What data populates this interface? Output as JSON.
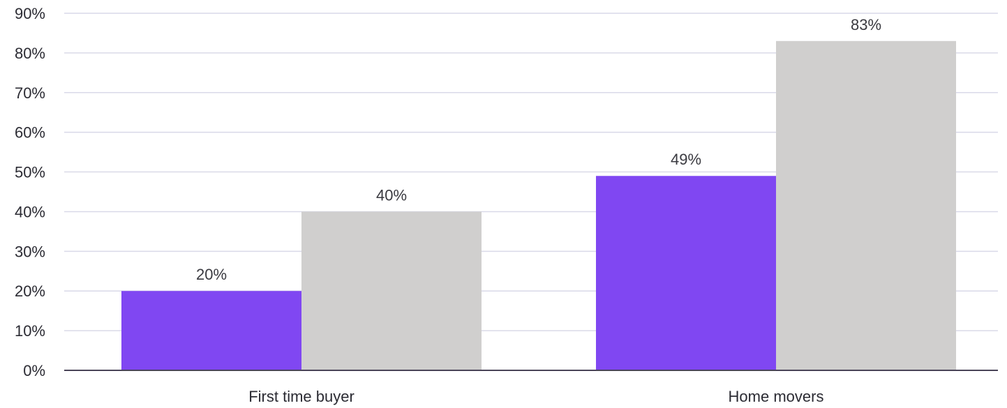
{
  "chart_data": {
    "type": "bar",
    "title": "",
    "xlabel": "",
    "ylabel": "",
    "categories": [
      "First time buyer",
      "Home movers"
    ],
    "series": [
      {
        "color": "#8047F2",
        "values": [
          20,
          49
        ],
        "labels": [
          "20%",
          "49%"
        ]
      },
      {
        "color": "#D0CFCE",
        "values": [
          40,
          83
        ],
        "labels": [
          "40%",
          "83%"
        ]
      }
    ],
    "ylim": [
      0,
      90
    ],
    "yticks": [
      0,
      10,
      20,
      30,
      40,
      50,
      60,
      70,
      80,
      90
    ],
    "ytick_labels": [
      "0%",
      "10%",
      "20%",
      "30%",
      "40%",
      "50%",
      "60%",
      "70%",
      "80%",
      "90%"
    ],
    "grid": true,
    "legend": "none"
  },
  "colors": {
    "gridline": "#D9D9E8",
    "axis": "#4A4458"
  }
}
